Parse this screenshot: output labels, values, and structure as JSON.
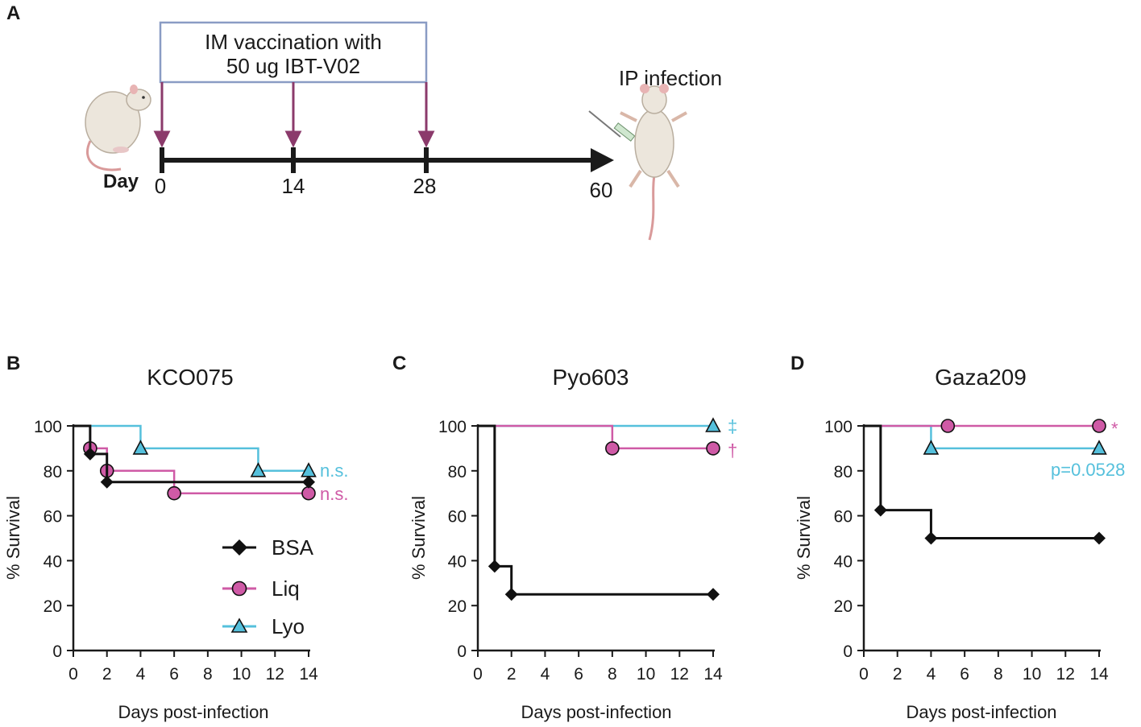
{
  "panel_a": {
    "label": "A",
    "box_text_line1": "IM vaccination with",
    "box_text_line2": "50 ug IBT-V02",
    "day_label": "Day",
    "timepoints": [
      "0",
      "14",
      "28",
      "60"
    ],
    "infection_label": "IP infection",
    "colors": {
      "box": "#8a9cc4",
      "arrow": "#8b3a6b",
      "timeline": "#1a1a1a"
    }
  },
  "colors": {
    "BSA": "#111111",
    "Liq": "#cf5aa6",
    "Lyo": "#55c0dc"
  },
  "legend": [
    "BSA",
    "Liq",
    "Lyo"
  ],
  "chart_data": [
    {
      "panel": "B",
      "type": "line",
      "title": "KCO075",
      "xlabel": "Days post-infection",
      "ylabel": "% Survival",
      "xlim": [
        0,
        14
      ],
      "ylim": [
        0,
        100
      ],
      "xticks": [
        "0",
        "2",
        "4",
        "6",
        "8",
        "10",
        "12",
        "14"
      ],
      "yticks": [
        "0",
        "20",
        "40",
        "60",
        "80",
        "100"
      ],
      "series": [
        {
          "name": "BSA",
          "step_x": [
            0,
            1,
            2,
            14
          ],
          "step_y": [
            100,
            87.5,
            75,
            75
          ],
          "marker_x": [
            1,
            2,
            14
          ],
          "marker_y": [
            87.5,
            75,
            75
          ]
        },
        {
          "name": "Liq",
          "step_x": [
            0,
            1,
            2,
            6,
            14
          ],
          "step_y": [
            100,
            90,
            80,
            70,
            70
          ],
          "marker_x": [
            1,
            2,
            6,
            14
          ],
          "marker_y": [
            90,
            80,
            70,
            70
          ]
        },
        {
          "name": "Lyo",
          "step_x": [
            0,
            4,
            11,
            14
          ],
          "step_y": [
            100,
            90,
            80,
            80
          ],
          "marker_x": [
            4,
            11,
            14
          ],
          "marker_y": [
            90,
            80,
            80
          ]
        }
      ],
      "annotations": [
        {
          "text": "n.s.",
          "series": "Lyo"
        },
        {
          "text": "n.s.",
          "series": "Liq"
        }
      ]
    },
    {
      "panel": "C",
      "type": "line",
      "title": "Pyo603",
      "xlabel": "Days post-infection",
      "ylabel": "% Survival",
      "xlim": [
        0,
        14
      ],
      "ylim": [
        0,
        100
      ],
      "xticks": [
        "0",
        "2",
        "4",
        "6",
        "8",
        "10",
        "12",
        "14"
      ],
      "yticks": [
        "0",
        "20",
        "40",
        "60",
        "80",
        "100"
      ],
      "series": [
        {
          "name": "BSA",
          "step_x": [
            0,
            1,
            2,
            14
          ],
          "step_y": [
            100,
            37.5,
            25,
            25
          ],
          "marker_x": [
            1,
            2,
            14
          ],
          "marker_y": [
            37.5,
            25,
            25
          ]
        },
        {
          "name": "Liq",
          "step_x": [
            0,
            8,
            14
          ],
          "step_y": [
            100,
            90,
            90
          ],
          "marker_x": [
            8,
            14
          ],
          "marker_y": [
            90,
            90
          ]
        },
        {
          "name": "Lyo",
          "step_x": [
            0,
            14
          ],
          "step_y": [
            100,
            100
          ],
          "marker_x": [
            14
          ],
          "marker_y": [
            100
          ]
        }
      ],
      "annotations": [
        {
          "text": "‡",
          "series": "Lyo"
        },
        {
          "text": "†",
          "series": "Liq"
        }
      ]
    },
    {
      "panel": "D",
      "type": "line",
      "title": "Gaza209",
      "xlabel": "Days post-infection",
      "ylabel": "% Survival",
      "xlim": [
        0,
        14
      ],
      "ylim": [
        0,
        100
      ],
      "xticks": [
        "0",
        "2",
        "4",
        "6",
        "8",
        "10",
        "12",
        "14"
      ],
      "yticks": [
        "0",
        "20",
        "40",
        "60",
        "80",
        "100"
      ],
      "series": [
        {
          "name": "BSA",
          "step_x": [
            0,
            1,
            4,
            14
          ],
          "step_y": [
            100,
            62.5,
            50,
            50
          ],
          "marker_x": [
            1,
            4,
            14
          ],
          "marker_y": [
            62.5,
            50,
            50
          ]
        },
        {
          "name": "Liq",
          "step_x": [
            0,
            14
          ],
          "step_y": [
            100,
            100
          ],
          "marker_x": [
            5,
            14
          ],
          "marker_y": [
            100,
            100
          ]
        },
        {
          "name": "Lyo",
          "step_x": [
            0,
            4,
            14
          ],
          "step_y": [
            100,
            90,
            90
          ],
          "marker_x": [
            4,
            14
          ],
          "marker_y": [
            90,
            90
          ]
        }
      ],
      "annotations": [
        {
          "text": "*",
          "series": "Liq"
        },
        {
          "text": "p=0.0528",
          "series": "Lyo"
        }
      ]
    }
  ]
}
